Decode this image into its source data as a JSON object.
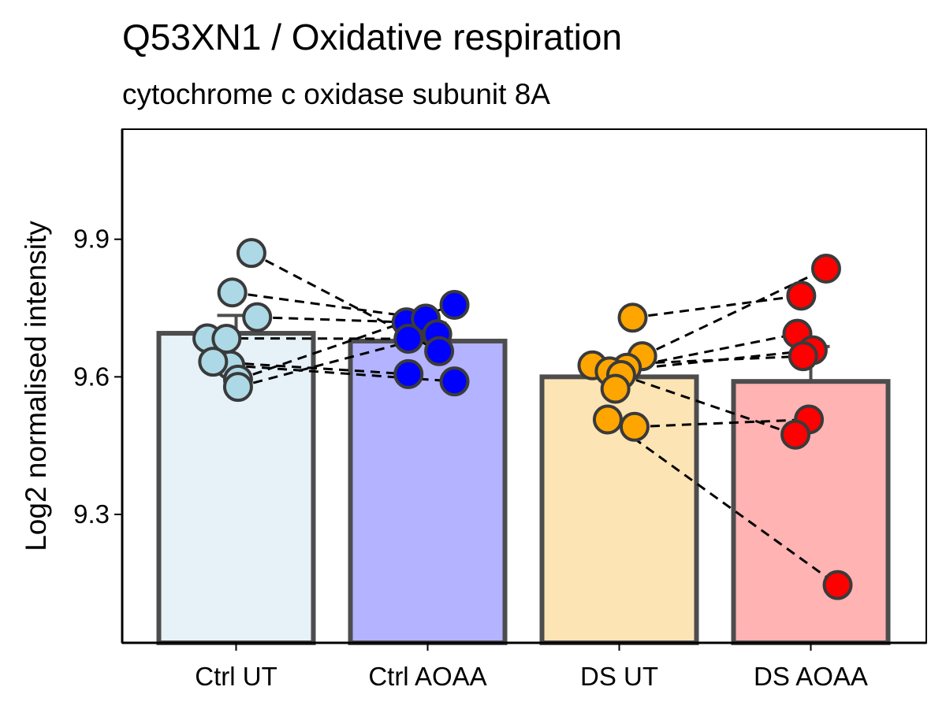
{
  "chart_data": {
    "type": "bar",
    "title": "Q53XN1 / Oxidative respiration",
    "subtitle": "cytochrome c oxidase subunit 8A",
    "xlabel": "",
    "ylabel": "Log2 normalised intensity",
    "ylim": [
      9.02,
      10.14
    ],
    "yticks": [
      9.3,
      9.6,
      9.9
    ],
    "ytick_labels": [
      "9.3",
      "9.6",
      "9.9"
    ],
    "categories": [
      "Ctrl UT",
      "Ctrl AOAA",
      "DS UT",
      "DS AOAA"
    ],
    "bar_values": [
      9.695,
      9.678,
      9.6,
      9.59
    ],
    "error_upper": [
      9.734,
      9.717,
      9.628,
      9.666
    ],
    "bar_fill_colors": [
      "#e6f1f8",
      "#b3b3ff",
      "#fde4b4",
      "#ffb3b3"
    ],
    "point_colors": [
      "#add8e6",
      "#0000ff",
      "#ffa500",
      "#ff0000"
    ],
    "points": [
      [
        {
          "x": -0.03,
          "y": 9.625
        },
        {
          "x": 0.08,
          "y": 9.87
        },
        {
          "x": -0.02,
          "y": 9.784
        },
        {
          "x": 0.11,
          "y": 9.73
        },
        {
          "x": -0.15,
          "y": 9.684
        },
        {
          "x": -0.05,
          "y": 9.683
        },
        {
          "x": -0.12,
          "y": 9.633
        },
        {
          "x": 0.01,
          "y": 9.594
        },
        {
          "x": 0.01,
          "y": 9.578
        }
      ],
      [
        {
          "x": -0.11,
          "y": 9.719
        },
        {
          "x": -0.01,
          "y": 9.727
        },
        {
          "x": 0.14,
          "y": 9.757
        },
        {
          "x": 0.05,
          "y": 9.693
        },
        {
          "x": -0.1,
          "y": 9.683
        },
        {
          "x": 0.06,
          "y": 9.656
        },
        {
          "x": -0.1,
          "y": 9.606
        },
        {
          "x": 0.14,
          "y": 9.59
        }
      ],
      [
        {
          "x": 0.07,
          "y": 9.729
        },
        {
          "x": 0.12,
          "y": 9.645
        },
        {
          "x": 0.04,
          "y": 9.62
        },
        {
          "x": -0.14,
          "y": 9.625
        },
        {
          "x": -0.05,
          "y": 9.612
        },
        {
          "x": 0.01,
          "y": 9.604
        },
        {
          "x": -0.02,
          "y": 9.574
        },
        {
          "x": -0.06,
          "y": 9.507
        },
        {
          "x": 0.08,
          "y": 9.491
        }
      ],
      [
        {
          "x": 0.08,
          "y": 9.836
        },
        {
          "x": -0.05,
          "y": 9.777
        },
        {
          "x": -0.07,
          "y": 9.694
        },
        {
          "x": 0.01,
          "y": 9.658
        },
        {
          "x": -0.04,
          "y": 9.645
        },
        {
          "x": -0.01,
          "y": 9.507
        },
        {
          "x": -0.08,
          "y": 9.474
        },
        {
          "x": 0.14,
          "y": 9.146
        }
      ]
    ],
    "pairs": [
      {
        "from": [
          0,
          1
        ],
        "to": [
          1,
          5
        ]
      },
      {
        "from": [
          0,
          3
        ],
        "to": [
          1,
          0
        ]
      },
      {
        "from": [
          0,
          2
        ],
        "to": [
          1,
          1
        ]
      },
      {
        "from": [
          0,
          4
        ],
        "to": [
          1,
          4
        ]
      },
      {
        "from": [
          0,
          8
        ],
        "to": [
          1,
          3
        ]
      },
      {
        "from": [
          0,
          7
        ],
        "to": [
          1,
          2
        ]
      },
      {
        "from": [
          0,
          6
        ],
        "to": [
          1,
          6
        ]
      },
      {
        "from": [
          0,
          0
        ],
        "to": [
          1,
          7
        ]
      },
      {
        "from": [
          2,
          0
        ],
        "to": [
          3,
          1
        ]
      },
      {
        "from": [
          2,
          1
        ],
        "to": [
          3,
          0
        ]
      },
      {
        "from": [
          2,
          2
        ],
        "to": [
          3,
          2
        ]
      },
      {
        "from": [
          2,
          3
        ],
        "to": [
          3,
          4
        ]
      },
      {
        "from": [
          2,
          4
        ],
        "to": [
          3,
          3
        ]
      },
      {
        "from": [
          2,
          5
        ],
        "to": [
          3,
          6
        ]
      },
      {
        "from": [
          2,
          8
        ],
        "to": [
          3,
          5
        ]
      },
      {
        "from": [
          2,
          7
        ],
        "to": [
          3,
          7
        ]
      }
    ]
  }
}
